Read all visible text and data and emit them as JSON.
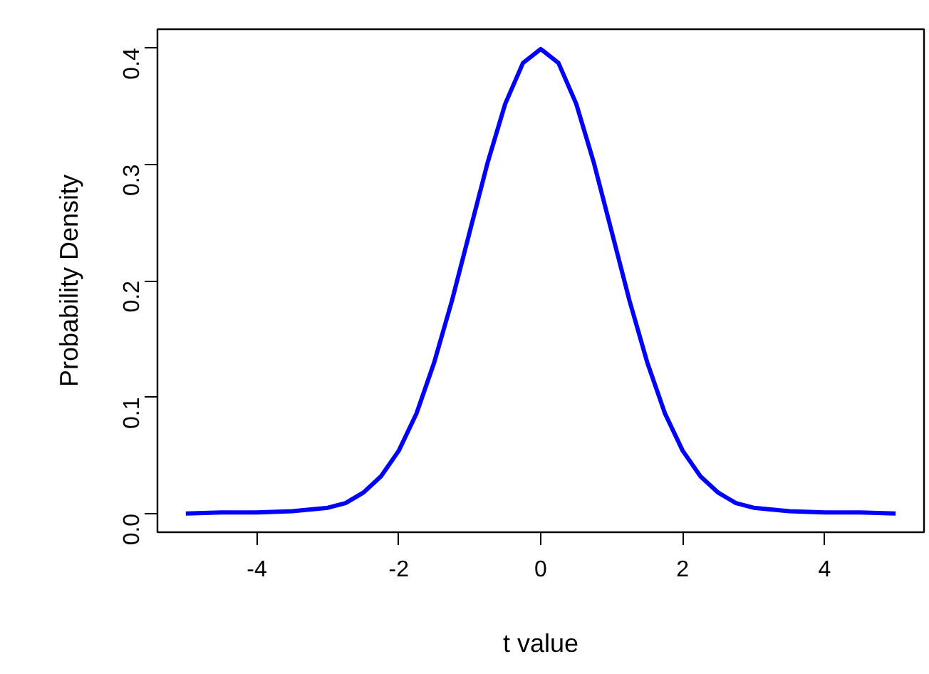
{
  "chart_data": {
    "type": "line",
    "xlabel": "t value",
    "ylabel": "Probability Density",
    "x": [
      -5,
      -4.5,
      -4,
      -3.5,
      -3,
      -2.75,
      -2.5,
      -2.25,
      -2,
      -1.75,
      -1.5,
      -1.25,
      -1,
      -0.75,
      -0.5,
      -0.25,
      0,
      0.25,
      0.5,
      0.75,
      1,
      1.25,
      1.5,
      1.75,
      2,
      2.25,
      2.5,
      2.75,
      3,
      3.5,
      4,
      4.5,
      5
    ],
    "series": [
      {
        "color": "#0000ff",
        "values": [
          0.0,
          0.001,
          0.001,
          0.002,
          0.005,
          0.009,
          0.018,
          0.032,
          0.054,
          0.086,
          0.13,
          0.183,
          0.242,
          0.301,
          0.352,
          0.387,
          0.399,
          0.387,
          0.352,
          0.301,
          0.242,
          0.183,
          0.13,
          0.086,
          0.054,
          0.032,
          0.018,
          0.009,
          0.005,
          0.002,
          0.001,
          0.001,
          0.0
        ]
      }
    ],
    "xlim": [
      -5.4,
      5.4
    ],
    "ylim": [
      -0.016,
      0.416
    ],
    "xticks": [
      -4,
      -2,
      0,
      2,
      4
    ],
    "yticks": [
      {
        "value": 0,
        "label": "0.0"
      },
      0.1,
      0.2,
      0.3,
      0.4
    ],
    "grid": false,
    "marker": "none",
    "line_style": "solid"
  }
}
